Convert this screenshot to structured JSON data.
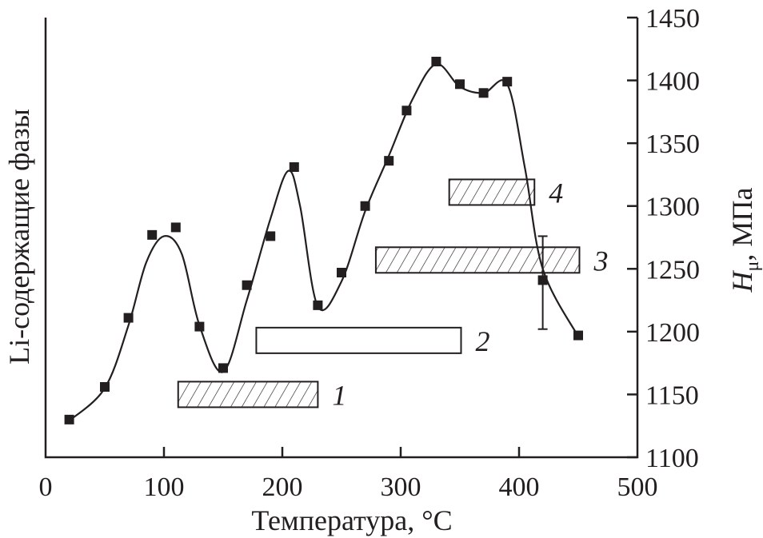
{
  "chart_data": {
    "type": "scatter",
    "title": "",
    "xlabel": "Температура, °C",
    "ylabel_left": "Li-содержащие фазы",
    "ylabel_right": {
      "symbol": "H",
      "subscript": "μ",
      "unit": ", МПа"
    },
    "xlim": [
      0,
      500
    ],
    "ylim": [
      1100,
      1450
    ],
    "xticks": [
      0,
      100,
      200,
      300,
      400,
      500
    ],
    "yticks": [
      1100,
      1150,
      1200,
      1250,
      1300,
      1350,
      1400,
      1450
    ],
    "grid": false,
    "points": [
      [
        20,
        1130
      ],
      [
        50,
        1156
      ],
      [
        70,
        1211
      ],
      [
        90,
        1277
      ],
      [
        110,
        1283
      ],
      [
        130,
        1204
      ],
      [
        150,
        1171
      ],
      [
        170,
        1237
      ],
      [
        190,
        1276
      ],
      [
        210,
        1331
      ],
      [
        230,
        1221
      ],
      [
        250,
        1247
      ],
      [
        270,
        1300
      ],
      [
        290,
        1336
      ],
      [
        305,
        1376
      ],
      [
        330,
        1415
      ],
      [
        350,
        1397
      ],
      [
        370,
        1390
      ],
      [
        390,
        1399
      ],
      [
        420,
        1241
      ],
      [
        450,
        1197
      ]
    ],
    "error_bar": {
      "x": 420,
      "y": 1241,
      "low": 1202,
      "high": 1276
    },
    "curve": [
      [
        20,
        1129
      ],
      [
        50,
        1155
      ],
      [
        70,
        1205
      ],
      [
        85,
        1255
      ],
      [
        100,
        1276
      ],
      [
        115,
        1262
      ],
      [
        130,
        1205
      ],
      [
        150,
        1168
      ],
      [
        170,
        1225
      ],
      [
        190,
        1290
      ],
      [
        205,
        1328
      ],
      [
        215,
        1300
      ],
      [
        230,
        1220
      ],
      [
        250,
        1240
      ],
      [
        270,
        1296
      ],
      [
        290,
        1340
      ],
      [
        310,
        1385
      ],
      [
        330,
        1413
      ],
      [
        350,
        1395
      ],
      [
        370,
        1390
      ],
      [
        390,
        1397
      ],
      [
        405,
        1330
      ],
      [
        420,
        1250
      ],
      [
        450,
        1196
      ]
    ],
    "phase_ranges": [
      {
        "label": "1",
        "from": 112,
        "to": 230,
        "hatched": true
      },
      {
        "label": "2",
        "from": 178,
        "to": 351,
        "hatched": false
      },
      {
        "label": "3",
        "from": 279,
        "to": 451,
        "hatched": true
      },
      {
        "label": "4",
        "from": 341,
        "to": 413,
        "hatched": true
      }
    ],
    "colors": {
      "ink": "#231f20",
      "background": "#ffffff"
    }
  }
}
